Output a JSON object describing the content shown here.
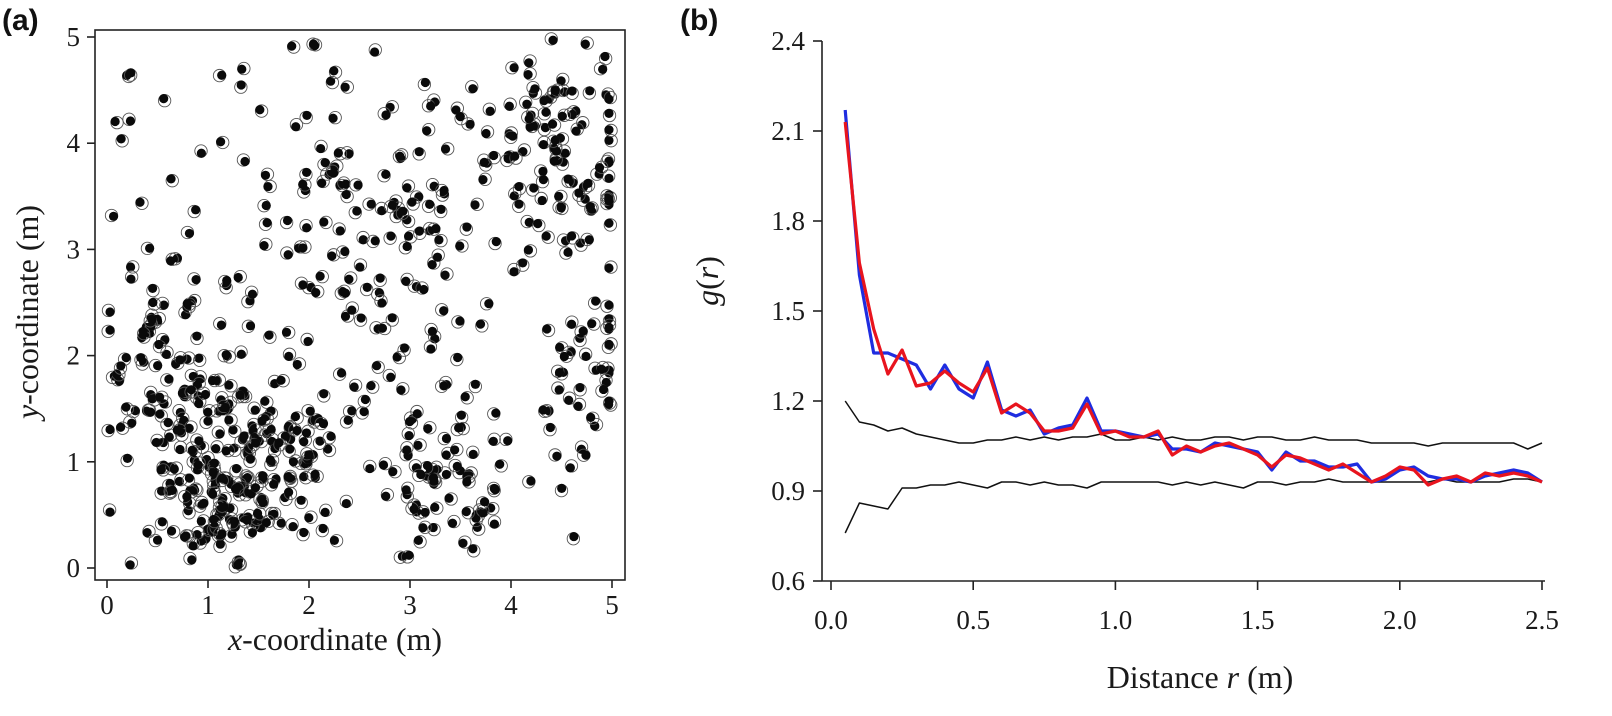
{
  "chart_data": [
    {
      "panel": "(a)",
      "type": "scatter",
      "xlabel_italic": "x",
      "xlabel_rest": "-coordinate (m)",
      "ylabel_italic": "y",
      "ylabel_rest": "-coordinate (m)",
      "xlim": [
        0,
        5
      ],
      "ylim": [
        0,
        5
      ],
      "xticks": [
        "0",
        "1",
        "2",
        "3",
        "4",
        "5"
      ],
      "yticks": [
        "0",
        "1",
        "2",
        "3",
        "4",
        "5"
      ],
      "n_points": 640,
      "marker": "filled circle with offset open ring",
      "clusters": [
        {
          "cx": 1.1,
          "cy": 0.9,
          "sd": 0.45,
          "n": 150
        },
        {
          "cx": 2.6,
          "cy": 3.2,
          "sd": 0.6,
          "n": 80
        },
        {
          "cx": 4.6,
          "cy": 3.5,
          "sd": 0.35,
          "n": 40
        },
        {
          "cx": 3.3,
          "cy": 0.8,
          "sd": 0.35,
          "n": 55
        },
        {
          "cx": 4.3,
          "cy": 4.2,
          "sd": 0.4,
          "n": 40
        },
        {
          "cx": 0.5,
          "cy": 2.0,
          "sd": 0.4,
          "n": 45
        },
        {
          "cx": 1.8,
          "cy": 1.2,
          "sd": 0.3,
          "n": 40
        },
        {
          "cx": 4.8,
          "cy": 1.8,
          "sd": 0.3,
          "n": 30
        }
      ]
    },
    {
      "panel": "(b)",
      "type": "line",
      "xlabel_prefix": "Distance ",
      "xlabel_italic": "r",
      "xlabel_suffix": " (m)",
      "ylabel_g": "g",
      "ylabel_r": "r",
      "xlim": [
        0,
        2.5
      ],
      "ylim": [
        0.6,
        2.4
      ],
      "xticks": [
        "0.0",
        "0.5",
        "1.0",
        "1.5",
        "2.0",
        "2.5"
      ],
      "yticks": [
        "0.6",
        "0.9",
        "1.2",
        "1.5",
        "1.8",
        "2.1",
        "2.4"
      ],
      "x": [
        0.05,
        0.1,
        0.15,
        0.2,
        0.25,
        0.3,
        0.35,
        0.4,
        0.45,
        0.5,
        0.55,
        0.6,
        0.65,
        0.7,
        0.75,
        0.8,
        0.85,
        0.9,
        0.95,
        1.0,
        1.05,
        1.1,
        1.15,
        1.2,
        1.25,
        1.3,
        1.35,
        1.4,
        1.45,
        1.5,
        1.55,
        1.6,
        1.65,
        1.7,
        1.75,
        1.8,
        1.85,
        1.9,
        1.95,
        2.0,
        2.05,
        2.1,
        2.15,
        2.2,
        2.25,
        2.3,
        2.35,
        2.4,
        2.45,
        2.5
      ],
      "series": [
        {
          "color": "#1f2de0",
          "width": 3.2,
          "values": [
            2.17,
            1.62,
            1.36,
            1.36,
            1.34,
            1.32,
            1.24,
            1.32,
            1.24,
            1.21,
            1.33,
            1.17,
            1.15,
            1.17,
            1.09,
            1.11,
            1.12,
            1.21,
            1.1,
            1.1,
            1.09,
            1.08,
            1.09,
            1.04,
            1.04,
            1.03,
            1.06,
            1.05,
            1.04,
            1.03,
            0.97,
            1.03,
            1.0,
            1.0,
            0.98,
            0.98,
            0.99,
            0.93,
            0.94,
            0.97,
            0.98,
            0.95,
            0.94,
            0.94,
            0.93,
            0.95,
            0.96,
            0.97,
            0.96,
            0.93
          ]
        },
        {
          "color": "#e8141e",
          "width": 3.2,
          "values": [
            2.13,
            1.66,
            1.44,
            1.29,
            1.37,
            1.25,
            1.26,
            1.3,
            1.26,
            1.23,
            1.31,
            1.16,
            1.19,
            1.16,
            1.1,
            1.1,
            1.11,
            1.19,
            1.09,
            1.1,
            1.08,
            1.08,
            1.1,
            1.02,
            1.05,
            1.03,
            1.05,
            1.06,
            1.04,
            1.02,
            0.98,
            1.02,
            1.01,
            0.99,
            0.97,
            0.99,
            0.96,
            0.93,
            0.95,
            0.98,
            0.97,
            0.92,
            0.94,
            0.95,
            0.93,
            0.96,
            0.95,
            0.96,
            0.95,
            0.93
          ]
        },
        {
          "color": "#111111",
          "width": 1.5,
          "values": [
            1.2,
            1.13,
            1.12,
            1.1,
            1.11,
            1.09,
            1.08,
            1.07,
            1.06,
            1.06,
            1.07,
            1.07,
            1.08,
            1.07,
            1.08,
            1.07,
            1.08,
            1.08,
            1.09,
            1.07,
            1.07,
            1.08,
            1.07,
            1.08,
            1.07,
            1.07,
            1.08,
            1.08,
            1.07,
            1.08,
            1.08,
            1.07,
            1.07,
            1.08,
            1.07,
            1.07,
            1.07,
            1.06,
            1.06,
            1.06,
            1.06,
            1.05,
            1.06,
            1.06,
            1.06,
            1.06,
            1.06,
            1.06,
            1.04,
            1.06
          ]
        },
        {
          "color": "#111111",
          "width": 1.5,
          "values": [
            0.76,
            0.86,
            0.85,
            0.84,
            0.91,
            0.91,
            0.92,
            0.92,
            0.93,
            0.92,
            0.91,
            0.93,
            0.93,
            0.92,
            0.93,
            0.92,
            0.92,
            0.91,
            0.93,
            0.93,
            0.93,
            0.93,
            0.93,
            0.92,
            0.93,
            0.92,
            0.93,
            0.92,
            0.91,
            0.93,
            0.93,
            0.92,
            0.93,
            0.93,
            0.94,
            0.93,
            0.93,
            0.93,
            0.93,
            0.93,
            0.93,
            0.93,
            0.94,
            0.93,
            0.93,
            0.93,
            0.93,
            0.94,
            0.94,
            0.93
          ]
        }
      ]
    }
  ]
}
